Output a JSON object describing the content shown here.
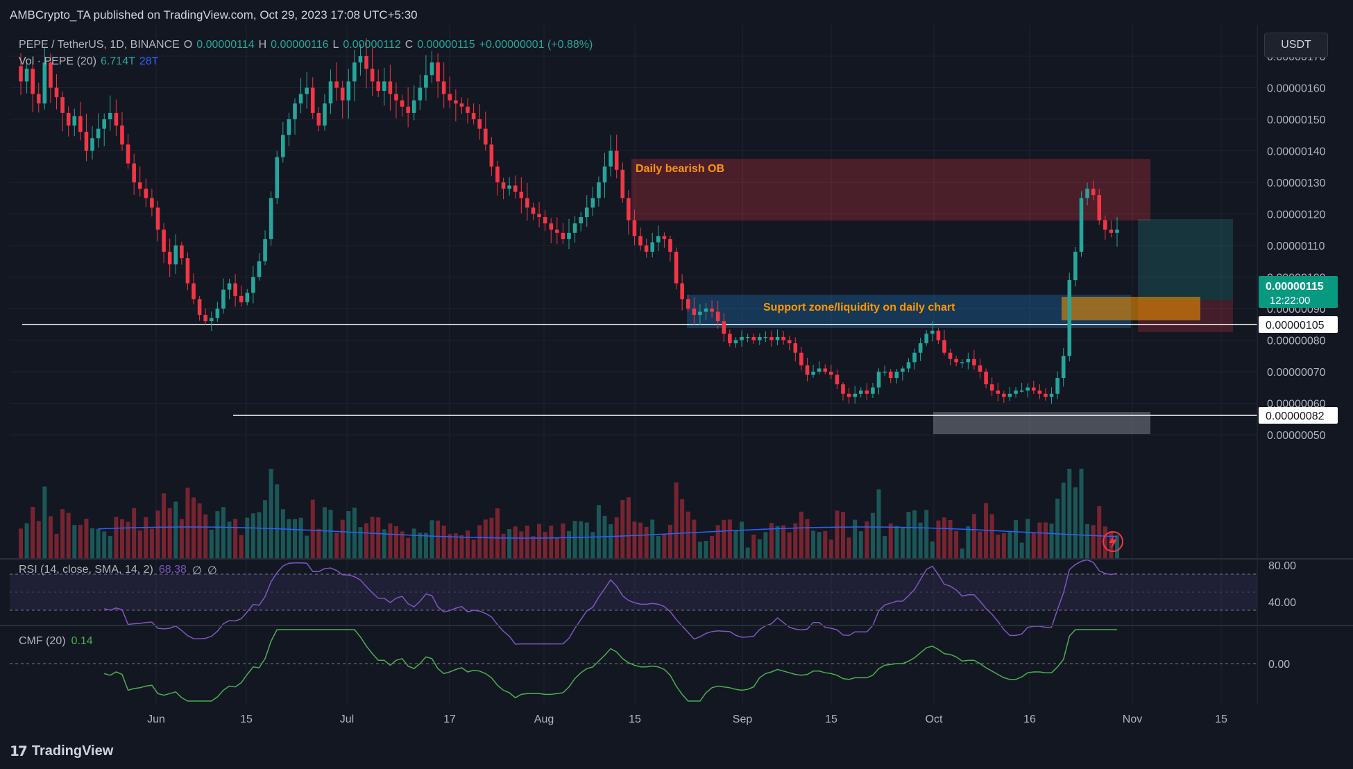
{
  "header": {
    "published_text": "AMBCrypto_TA published on TradingView.com, Oct 29, 2023 17:08 UTC+5:30"
  },
  "legend": {
    "symbol": "PEPE / TetherUS, 1D, BINANCE",
    "open_label": "O",
    "open": "0.00000114",
    "high_label": "H",
    "high": "0.00000116",
    "low_label": "L",
    "low": "0.00000112",
    "close_label": "C",
    "close": "0.00000115",
    "change": "+0.00000001 (+0.88%)",
    "vol_label": "Vol · PEPE (20)",
    "vol_value": "6.714T",
    "vol_ma": "28T"
  },
  "unit": "USDT",
  "indicators": {
    "rsi": {
      "label": "RSI (14, close, SMA, 14, 2)",
      "value": "68.38",
      "extra1": "∅",
      "extra2": "∅",
      "ticks": [
        "80.00",
        "40.00"
      ]
    },
    "cmf": {
      "label": "CMF (20)",
      "value": "0.14",
      "ticks": [
        "0.00"
      ]
    }
  },
  "price_badges": {
    "last": "0.00000115",
    "countdown": "12:22:00",
    "line1": "0.00000105",
    "line2": "0.00000082"
  },
  "annotations": {
    "bearish_ob": "Daily bearish OB",
    "support": "Support zone/liquidity on daily chart"
  },
  "footer": {
    "brand": "TradingView"
  },
  "colors": {
    "up": "#26a69a",
    "down": "#f23645",
    "bg": "#131722",
    "annotation_text": "#ff9800",
    "rsi": "#7e57c2",
    "cmf": "#4caf50",
    "vol_ma": "#2962ff"
  },
  "chart_data": {
    "type": "candlestick",
    "y_axis": {
      "ticks": [
        "0.00000170",
        "0.00000160",
        "0.00000150",
        "0.00000140",
        "0.00000130",
        "0.00000120",
        "0.00000110",
        "0.00000100",
        "0.00000090",
        "0.00000080",
        "0.00000070",
        "0.00000060",
        "0.00000050"
      ],
      "range": [
        4.4e-07,
        1.77e-06
      ]
    },
    "x_axis": {
      "ticks": [
        "Jun",
        "15",
        "Jul",
        "17",
        "Aug",
        "15",
        "Sep",
        "15",
        "Oct",
        "16",
        "Nov",
        "15"
      ]
    },
    "close_series": [
      1.62,
      1.66,
      1.58,
      1.55,
      1.68,
      1.6,
      1.57,
      1.52,
      1.48,
      1.51,
      1.46,
      1.4,
      1.44,
      1.47,
      1.5,
      1.52,
      1.48,
      1.42,
      1.36,
      1.3,
      1.28,
      1.25,
      1.22,
      1.15,
      1.08,
      1.04,
      1.1,
      1.06,
      0.98,
      0.93,
      0.88,
      0.86,
      0.87,
      0.9,
      0.96,
      0.98,
      0.94,
      0.92,
      0.95,
      1.0,
      1.05,
      1.12,
      1.25,
      1.38,
      1.45,
      1.5,
      1.55,
      1.58,
      1.6,
      1.52,
      1.48,
      1.55,
      1.62,
      1.6,
      1.56,
      1.62,
      1.68,
      1.7,
      1.66,
      1.62,
      1.59,
      1.62,
      1.58,
      1.56,
      1.54,
      1.52,
      1.56,
      1.6,
      1.64,
      1.68,
      1.62,
      1.58,
      1.56,
      1.55,
      1.54,
      1.52,
      1.5,
      1.47,
      1.42,
      1.35,
      1.3,
      1.28,
      1.29,
      1.27,
      1.25,
      1.22,
      1.2,
      1.19,
      1.17,
      1.15,
      1.14,
      1.12,
      1.14,
      1.17,
      1.19,
      1.22,
      1.25,
      1.3,
      1.35,
      1.4,
      1.34,
      1.25,
      1.18,
      1.13,
      1.1,
      1.08,
      1.11,
      1.13,
      1.12,
      1.08,
      0.98,
      0.93,
      0.9,
      0.88,
      0.89,
      0.9,
      0.89,
      0.86,
      0.82,
      0.79,
      0.8,
      0.81,
      0.81,
      0.8,
      0.81,
      0.81,
      0.8,
      0.81,
      0.8,
      0.79,
      0.76,
      0.72,
      0.69,
      0.7,
      0.71,
      0.7,
      0.69,
      0.66,
      0.63,
      0.62,
      0.63,
      0.64,
      0.63,
      0.65,
      0.7,
      0.7,
      0.68,
      0.7,
      0.71,
      0.73,
      0.76,
      0.79,
      0.82,
      0.83,
      0.8,
      0.76,
      0.74,
      0.73,
      0.73,
      0.74,
      0.72,
      0.7,
      0.66,
      0.64,
      0.63,
      0.62,
      0.63,
      0.64,
      0.64,
      0.65,
      0.64,
      0.63,
      0.62,
      0.63,
      0.68,
      0.75,
      0.99,
      1.08,
      1.25,
      1.28,
      1.26,
      1.18,
      1.15,
      1.14,
      1.15
    ],
    "highs_lows_note": "",
    "horizontal_lines": [
      1.05e-06,
      8.2e-07
    ]
  }
}
